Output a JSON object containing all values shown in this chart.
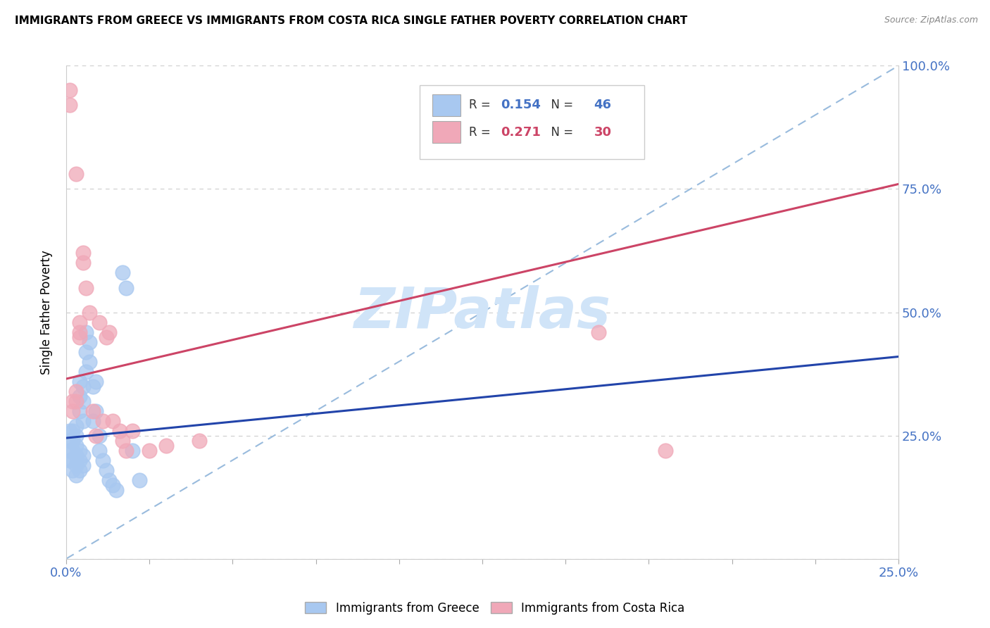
{
  "title": "IMMIGRANTS FROM GREECE VS IMMIGRANTS FROM COSTA RICA SINGLE FATHER POVERTY CORRELATION CHART",
  "source": "Source: ZipAtlas.com",
  "ylabel_label": "Single Father Poverty",
  "x_min": 0.0,
  "x_max": 0.25,
  "y_min": 0.0,
  "y_max": 1.0,
  "x_ticks": [
    0.0,
    0.025,
    0.05,
    0.075,
    0.1,
    0.125,
    0.15,
    0.175,
    0.2,
    0.225,
    0.25
  ],
  "x_tick_labels_show": {
    "0.0": "0.0%",
    "0.25": "25.0%"
  },
  "y_ticks_right": [
    0.0,
    0.25,
    0.5,
    0.75,
    1.0
  ],
  "y_tick_labels_right": [
    "",
    "25.0%",
    "50.0%",
    "75.0%",
    "100.0%"
  ],
  "color_greece": "#a8c8f0",
  "color_costarica": "#f0a8b8",
  "line_color_greece": "#2244aa",
  "line_color_costarica": "#cc4466",
  "diag_line_color": "#99bbdd",
  "watermark_text": "ZIPatlas",
  "watermark_color": "#d0e4f8",
  "greece_x": [
    0.001,
    0.001,
    0.001,
    0.001,
    0.002,
    0.002,
    0.002,
    0.002,
    0.002,
    0.003,
    0.003,
    0.003,
    0.003,
    0.003,
    0.003,
    0.004,
    0.004,
    0.004,
    0.004,
    0.004,
    0.004,
    0.005,
    0.005,
    0.005,
    0.005,
    0.005,
    0.006,
    0.006,
    0.006,
    0.007,
    0.007,
    0.008,
    0.008,
    0.009,
    0.009,
    0.01,
    0.01,
    0.011,
    0.012,
    0.013,
    0.014,
    0.015,
    0.017,
    0.018,
    0.02,
    0.022
  ],
  "greece_y": [
    0.2,
    0.22,
    0.24,
    0.26,
    0.18,
    0.2,
    0.22,
    0.24,
    0.26,
    0.17,
    0.19,
    0.21,
    0.23,
    0.25,
    0.27,
    0.18,
    0.2,
    0.22,
    0.3,
    0.33,
    0.36,
    0.19,
    0.21,
    0.28,
    0.32,
    0.35,
    0.38,
    0.42,
    0.46,
    0.4,
    0.44,
    0.35,
    0.28,
    0.36,
    0.3,
    0.25,
    0.22,
    0.2,
    0.18,
    0.16,
    0.15,
    0.14,
    0.58,
    0.55,
    0.22,
    0.16
  ],
  "costarica_x": [
    0.001,
    0.001,
    0.002,
    0.002,
    0.003,
    0.003,
    0.003,
    0.004,
    0.004,
    0.004,
    0.005,
    0.005,
    0.006,
    0.007,
    0.008,
    0.009,
    0.01,
    0.011,
    0.012,
    0.013,
    0.014,
    0.016,
    0.017,
    0.018,
    0.02,
    0.025,
    0.03,
    0.04,
    0.16,
    0.18
  ],
  "costarica_y": [
    0.92,
    0.95,
    0.3,
    0.32,
    0.32,
    0.34,
    0.78,
    0.45,
    0.48,
    0.46,
    0.6,
    0.62,
    0.55,
    0.5,
    0.3,
    0.25,
    0.48,
    0.28,
    0.45,
    0.46,
    0.28,
    0.26,
    0.24,
    0.22,
    0.26,
    0.22,
    0.23,
    0.24,
    0.46,
    0.22
  ],
  "greece_line_x0": 0.0,
  "greece_line_y0": 0.245,
  "greece_line_x1": 0.25,
  "greece_line_y1": 0.41,
  "costarica_line_x0": 0.0,
  "costarica_line_y0": 0.365,
  "costarica_line_x1": 0.25,
  "costarica_line_y1": 0.76
}
